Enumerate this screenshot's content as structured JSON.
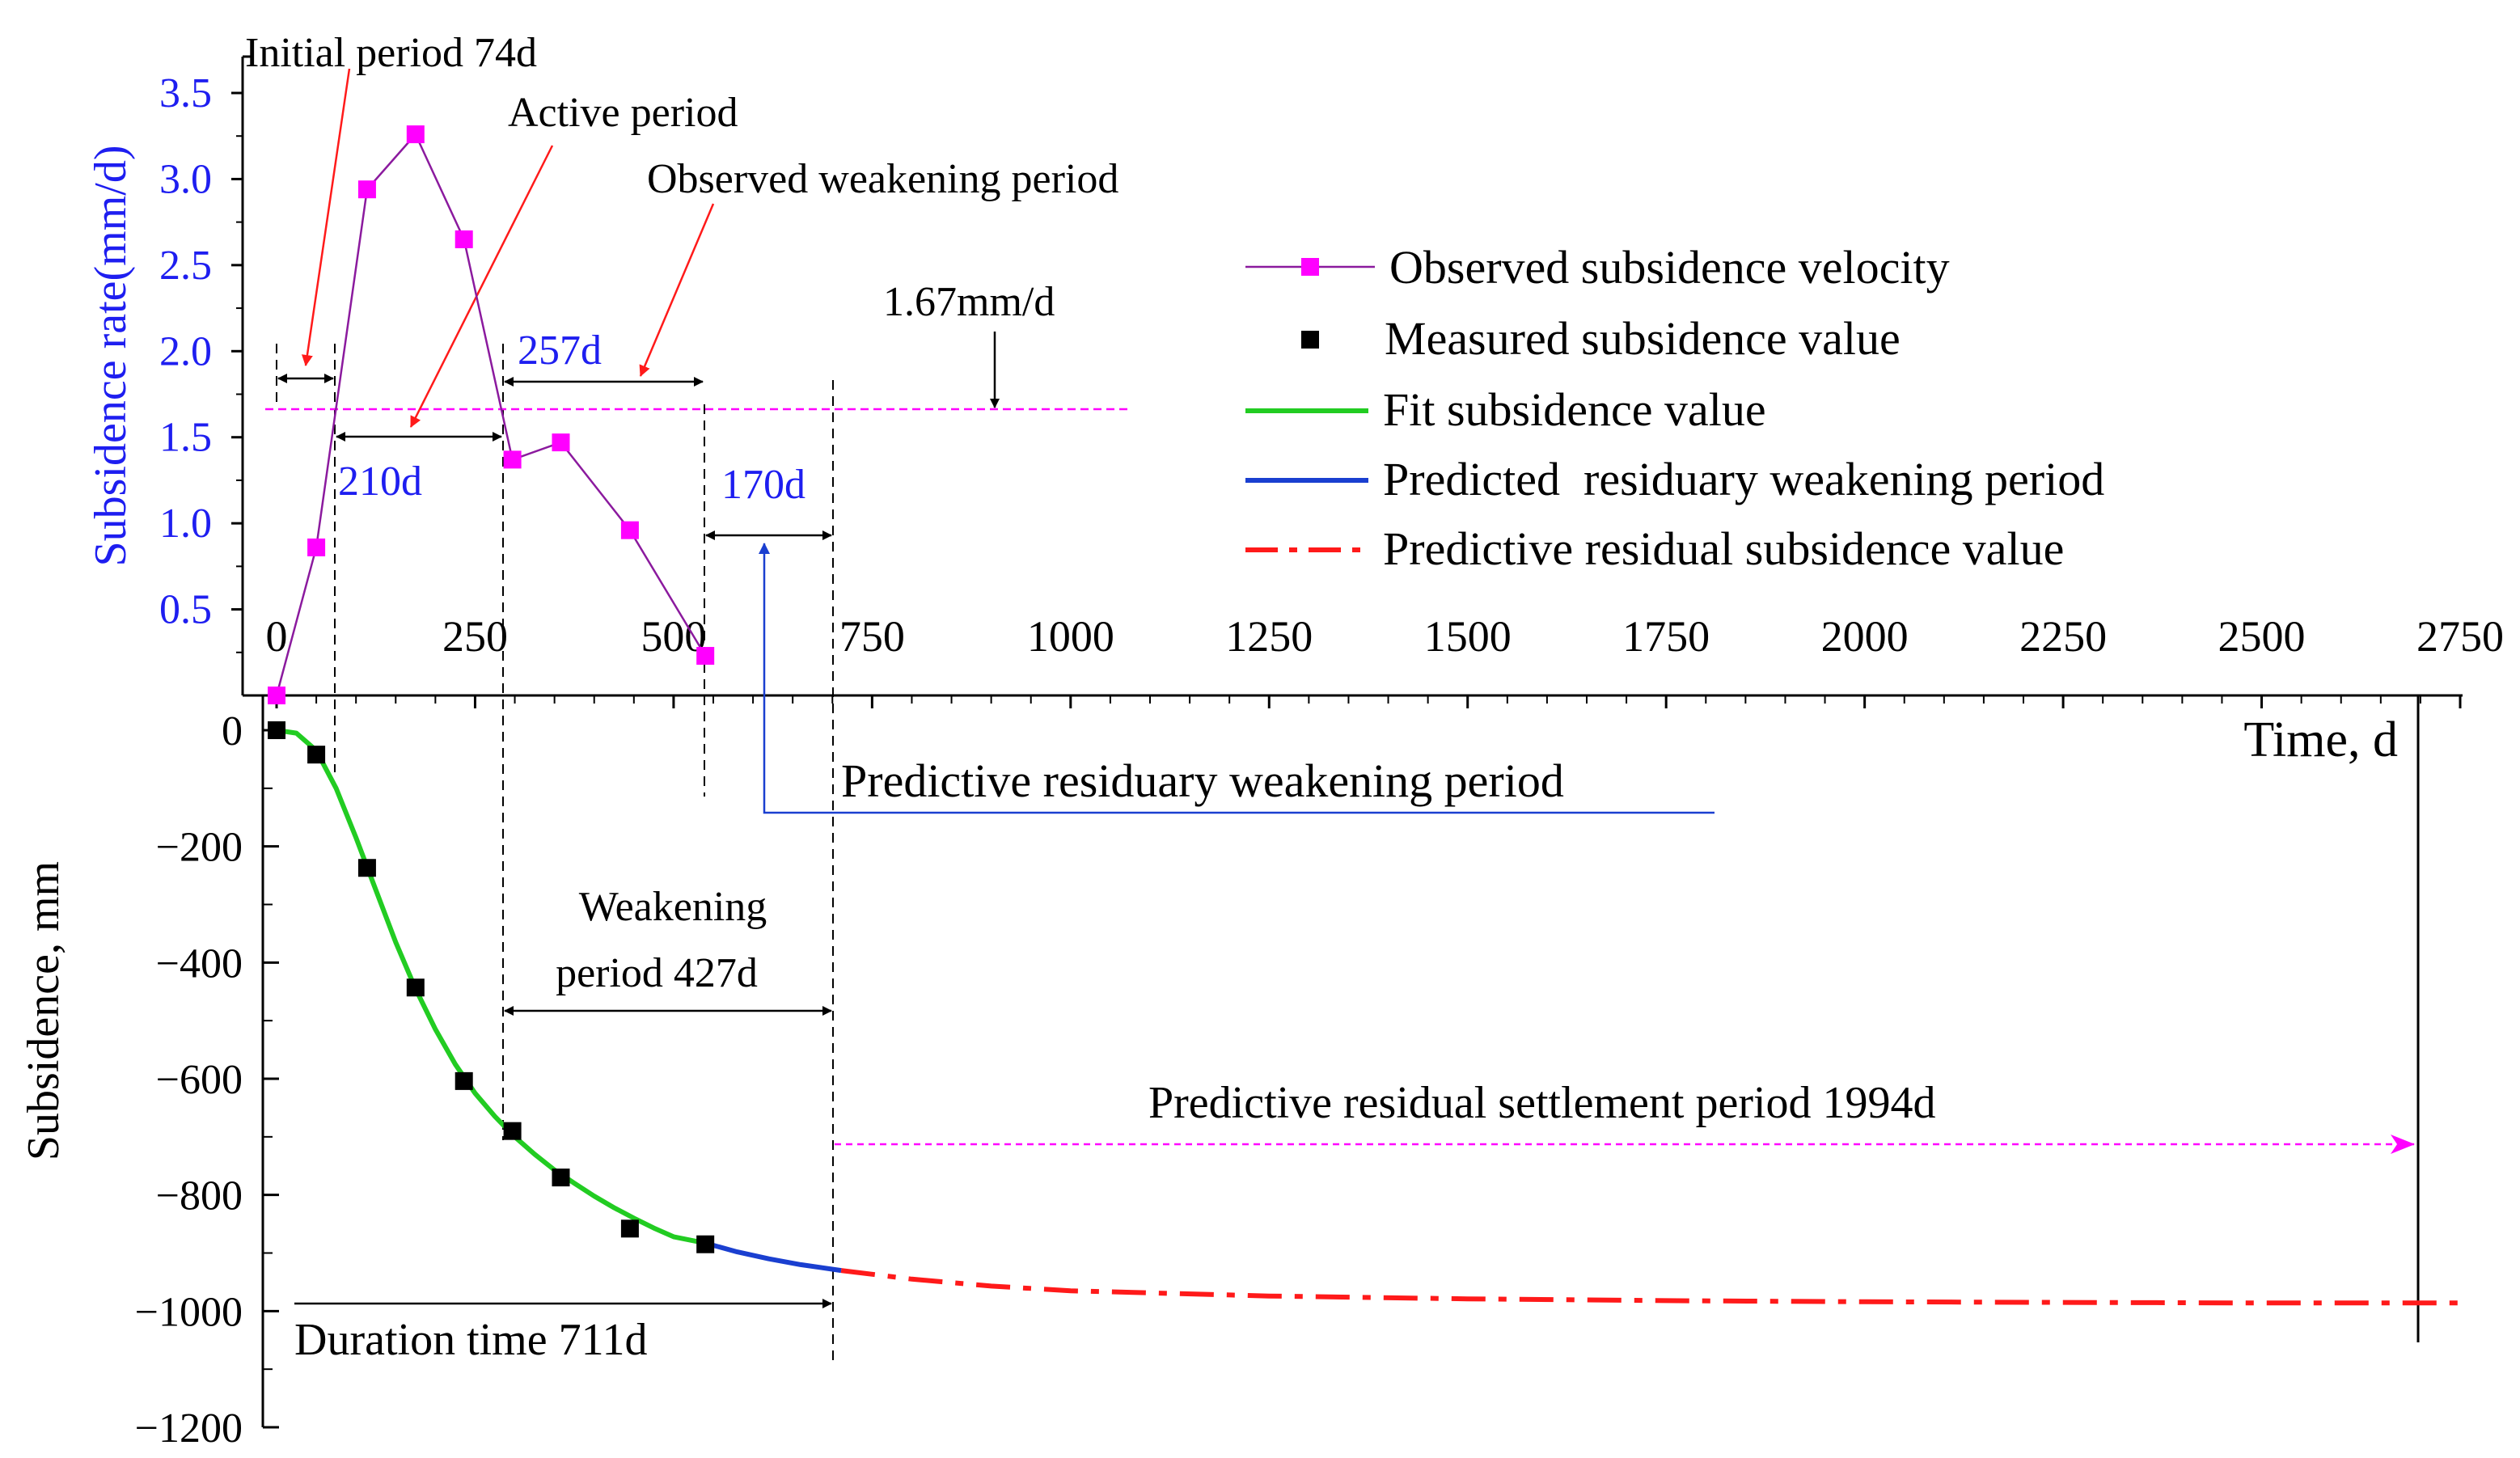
{
  "chart_data": [
    {
      "type": "line",
      "panel": "top",
      "ylabel": "Subsidence rate(mm/d)",
      "xlim": [
        0,
        2750
      ],
      "ylim": [
        0,
        3.5
      ],
      "yticks": [
        "0.5",
        "1.0",
        "1.5",
        "2.0",
        "2.5",
        "3.0",
        "3.5"
      ],
      "xticks": [
        "0",
        "250",
        "500",
        "750",
        "1000",
        "1250",
        "1500",
        "1750",
        "2000",
        "2250",
        "2500",
        "2750"
      ],
      "series": [
        {
          "name": "Observed subsidence velocity",
          "color": "#ff00ff",
          "x": [
            0,
            50,
            114,
            175,
            236,
            297,
            358,
            445,
            540
          ],
          "y": [
            0.0,
            0.86,
            2.94,
            3.26,
            2.65,
            1.37,
            1.47,
            0.96,
            0.23
          ]
        }
      ],
      "threshold": {
        "value": 1.67,
        "label": "1.67mm/d",
        "x_end": 1090
      },
      "annotations": {
        "initial_period": "Initial period 74d",
        "active_period": "Active period",
        "observed_weakening": "Observed weakening period",
        "span_210": "210d",
        "span_257": "257d",
        "span_170": "170d"
      }
    },
    {
      "type": "line",
      "panel": "bottom",
      "xlabel": "Time, d",
      "ylabel": "Subsidence, mm",
      "xlim": [
        0,
        2750
      ],
      "ylim": [
        -1200,
        0
      ],
      "yticks": [
        "0",
        "−200",
        "−400",
        "−600",
        "−800",
        "−1000",
        "−1200"
      ],
      "series": [
        {
          "name": "Measured subsidence value",
          "color": "#000000",
          "x": [
            0,
            50,
            114,
            175,
            236,
            297,
            358,
            445,
            540
          ],
          "y": [
            0,
            -42,
            -237,
            -443,
            -604,
            -690,
            -770,
            -858,
            -885
          ]
        },
        {
          "name": "Fit subsidence value",
          "color": "#22cc22",
          "x": [
            0,
            25,
            50,
            75,
            100,
            125,
            150,
            175,
            200,
            225,
            250,
            275,
            300,
            325,
            350,
            375,
            400,
            425,
            450,
            475,
            500,
            540
          ],
          "y": [
            0,
            -5,
            -35,
            -100,
            -185,
            -275,
            -365,
            -445,
            -515,
            -575,
            -625,
            -665,
            -700,
            -730,
            -757,
            -780,
            -802,
            -822,
            -840,
            -857,
            -872,
            -883
          ]
        },
        {
          "name": "Predicted residuary weakening period",
          "color": "#1a3fd0",
          "x": [
            540,
            580,
            620,
            660,
            711
          ],
          "y": [
            -883,
            -898,
            -910,
            -920,
            -930
          ]
        },
        {
          "name": "Predictive residual subsidence value",
          "color": "#ff1a1a",
          "x": [
            711,
            800,
            900,
            1000,
            1250,
            1500,
            1750,
            2000,
            2250,
            2500,
            2750
          ],
          "y": [
            -930,
            -945,
            -957,
            -965,
            -974,
            -979,
            -982,
            -984,
            -985,
            -986,
            -986
          ]
        }
      ],
      "annotations": {
        "weakening_line1": "Weakening",
        "weakening_line2": "period 427d",
        "residual_period": "Predictive residual settlement period 1994d",
        "duration": "Duration time 711d",
        "predictive_residuary": "Predictive residuary weakening period"
      }
    }
  ],
  "legend": {
    "placement": "top-right",
    "items": [
      "Observed subsidence velocity",
      "Measured subsidence value",
      "Fit subsidence value",
      "Predicted  residuary weakening period",
      "Predictive residual subsidence value"
    ]
  }
}
